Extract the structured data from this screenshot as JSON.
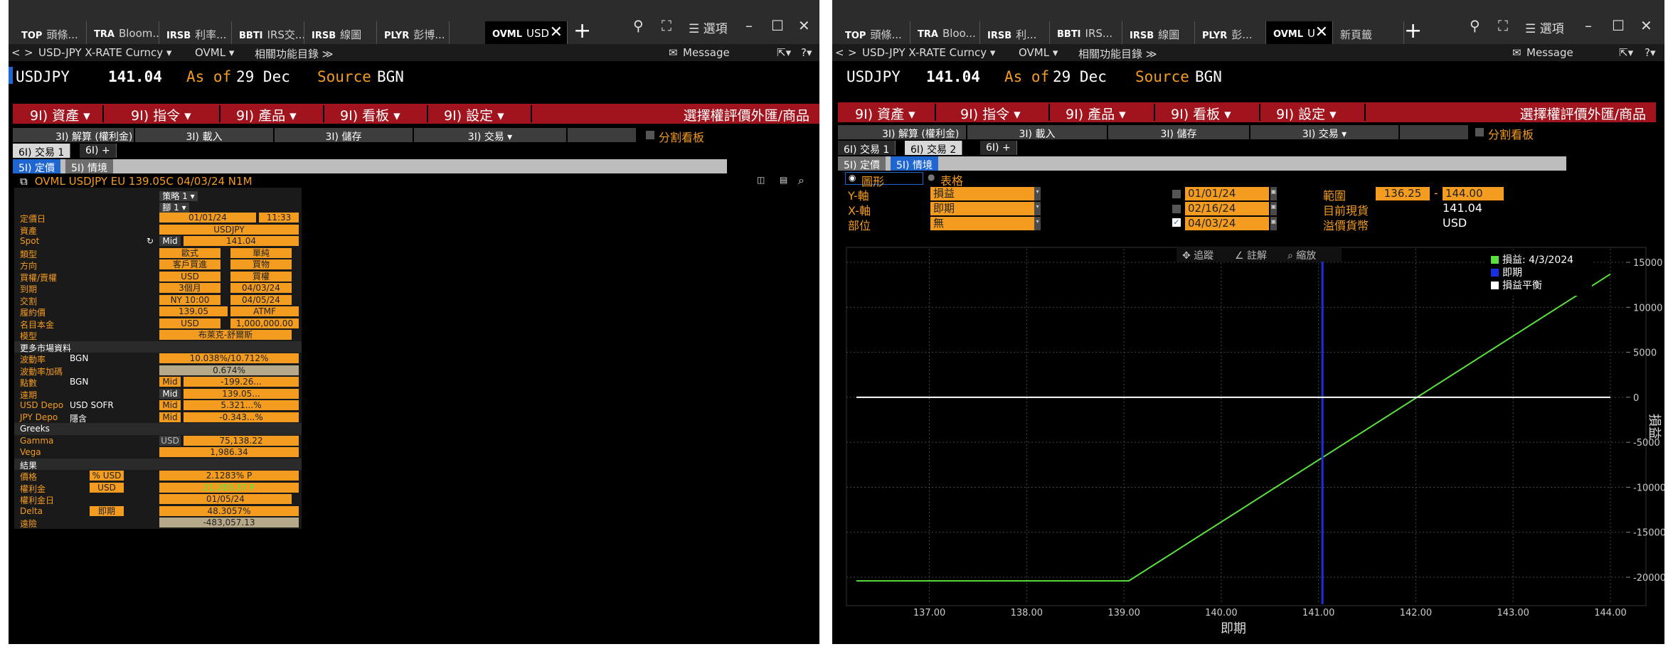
{
  "left_window": {
    "tabs": [
      {
        "prefix": "TOP",
        "label": "頭條..."
      },
      {
        "prefix": "TRA",
        "label": "Bloom..."
      },
      {
        "prefix": "IRSB",
        "label": "利率..."
      },
      {
        "prefix": "BBTI",
        "label": "IRS交..."
      },
      {
        "prefix": "IRSB",
        "label": "線圖"
      },
      {
        "prefix": "PLYR",
        "label": "彭博..."
      },
      {
        "prefix": "OVML",
        "label": "USD"
      }
    ],
    "options_label": "☰ 選項",
    "menu": {
      "security": "USD-JPY X-RATE Curncy ▾",
      "function": "OVML ▾",
      "related": "相關功能目錄 ≫",
      "message": "Message"
    },
    "quote": {
      "ticker": "USDJPY",
      "price": "141.04",
      "asof_label": "As of",
      "asof_date": "29 Dec",
      "source_label": "Source",
      "source": "BGN"
    },
    "red_menu": [
      "9I) 資產 ▾",
      "9I) 指令 ▾",
      "9I) 產品 ▾",
      "9I) 看板 ▾",
      "9I) 設定 ▾"
    ],
    "red_menu_right": "選擇權評價外匯/商品",
    "action_bar": [
      "3I) 解算 (權利金) ▾",
      "3I) 載入",
      "3I) 儲存",
      "3I) 交易 ▾"
    ],
    "split_label": "分割看板",
    "deal_tabs": [
      "6I) 交易 1",
      "6I) +"
    ],
    "view_tabs": [
      "5I) 定價",
      "5I) 情境"
    ],
    "deal_header": "OVML USDJPY EU 139.05C 04/03/24 N1M",
    "strategy_label": "策略 1 ▾",
    "leg_label": "腳 1 ▾",
    "rows": [
      {
        "label": "定價日",
        "value": "01/01/24",
        "value2": "11:33"
      },
      {
        "label": "資產",
        "value": "USDJPY"
      },
      {
        "label": "Spot",
        "src": "Mid",
        "value": "141.04"
      },
      {
        "label": "類型",
        "value": "歐式",
        "value2": "單純"
      },
      {
        "label": "方向",
        "value": "客戶買進",
        "value2": "買物"
      },
      {
        "label": "買權/賣權",
        "value": "USD",
        "value2": "買權"
      },
      {
        "label": "到期",
        "value": "3個月",
        "value2": "04/03/24"
      },
      {
        "label": "交割",
        "value": "NY 10:00",
        "value2": "04/05/24"
      },
      {
        "label": "履約價",
        "value": "139.05",
        "value2": "ATMF"
      },
      {
        "label": "名目本金",
        "value": "USD",
        "value2": "1,000,000.00"
      },
      {
        "label": "模型",
        "value": "布萊克-舒爾斯"
      },
      {
        "label": "更多市場資料",
        "section": true
      },
      {
        "label": "波動率",
        "src": "BGN",
        "value": "10.038%/10.712%"
      },
      {
        "label": "波動率加碼",
        "value": "0.674%"
      },
      {
        "label": "點數",
        "src": "BGN",
        "value": "Mid",
        "value2": "-199.26..."
      },
      {
        "label": "遠期",
        "value": "Mid",
        "value2": "139.05..."
      },
      {
        "label": "USD Depo",
        "src": "USD SOFR",
        "value": "Mid",
        "value2": "5.321...%"
      },
      {
        "label": "JPY Depo",
        "src": "隱含",
        "value": "Mid",
        "value2": "-0.343...%"
      },
      {
        "label": "Greeks",
        "section": true
      },
      {
        "label": "Gamma",
        "value": "USD",
        "value2": "75,138.22"
      },
      {
        "label": "Vega",
        "value": "1,986.34"
      },
      {
        "label": "結果",
        "section": true
      },
      {
        "label": "價格",
        "value": "% USD",
        "value2": "2.1283% P"
      },
      {
        "label": "權利金",
        "value": "USD",
        "value2": "21,283.37 P"
      },
      {
        "label": "權利金日",
        "value": "01/05/24"
      },
      {
        "label": "Delta",
        "value": "即期",
        "value2": "48.3057%"
      },
      {
        "label": "遠險",
        "value": "-483,057.13"
      }
    ]
  },
  "right_window": {
    "tabs": [
      {
        "prefix": "TOP",
        "label": "頭條..."
      },
      {
        "prefix": "TRA",
        "label": "Bloo..."
      },
      {
        "prefix": "IRSB",
        "label": "利..."
      },
      {
        "prefix": "BBTI",
        "label": "IRS..."
      },
      {
        "prefix": "IRSB",
        "label": "線圖"
      },
      {
        "prefix": "PLYR",
        "label": "彭..."
      },
      {
        "prefix": "OVML",
        "label": "U"
      },
      {
        "prefix": "",
        "label": "新頁籤"
      }
    ],
    "options_label": "☰ 選項",
    "menu": {
      "security": "USD-JPY X-RATE Curncy ▾",
      "function": "OVML ▾",
      "related": "相關功能目錄 ≫",
      "message": "Message"
    },
    "quote": {
      "ticker": "USDJPY",
      "price": "141.04",
      "asof_label": "As of",
      "asof_date": "29 Dec",
      "source_label": "Source",
      "source": "BGN"
    },
    "red_menu": [
      "9I) 資產 ▾",
      "9I) 指令 ▾",
      "9I) 產品 ▾",
      "9I) 看板 ▾",
      "9I) 設定 ▾"
    ],
    "red_menu_right": "選擇權評價外匯/商品",
    "action_bar": [
      "3I) 解算 (權利金) ▾",
      "3I) 載入",
      "3I) 儲存",
      "3I) 交易 ▾"
    ],
    "split_label": "分割看板",
    "deal_tabs": [
      "6I) 交易 1",
      "6I) 交易 2",
      "6I) +"
    ],
    "view_tabs": [
      "5I) 定價",
      "5I) 情境"
    ],
    "radio_graph": "圖形",
    "radio_table": "表格",
    "axis_controls": [
      {
        "label": "Y-軸",
        "value": "損益"
      },
      {
        "label": "X-軸",
        "value": "即期"
      },
      {
        "label": "部位",
        "value": "無"
      }
    ],
    "dates": [
      "01/01/24",
      "02/16/24",
      "04/03/24"
    ],
    "range_label": "範圍",
    "range_from": "136.25",
    "range_to": "144.00",
    "current_spot_label": "目前現貨",
    "current_spot": "141.04",
    "currency_label": "溢價貨幣",
    "currency": "USD",
    "chart_toolbar": [
      "✥ 追蹤",
      "∠ 註解",
      "⌕ 縮放"
    ],
    "accent_color": "#f39c1f",
    "red_color": "#a1141e"
  },
  "chart_data": {
    "type": "line",
    "xlabel": "即期",
    "ylabel": "損益",
    "xlim": [
      136.25,
      144.0
    ],
    "ylim": [
      -23000,
      16500
    ],
    "x_ticks": [
      "137.00",
      "138.00",
      "139.00",
      "140.00",
      "141.00",
      "142.00",
      "143.00",
      "144.00"
    ],
    "y_ticks": [
      "15000",
      "10000",
      "5000",
      "0",
      "-5000",
      "-10000",
      "-15000",
      "-20000"
    ],
    "series": [
      {
        "name": "損益: 4/3/2024",
        "color": "#5ae03e",
        "x": [
          136.25,
          139.05,
          144.0
        ],
        "y": [
          -20400,
          -20400,
          13690
        ]
      },
      {
        "name": "即期",
        "color": "#1c2fe0",
        "vertical_x": 141.04
      },
      {
        "name": "損益平衡",
        "color": "#ffffff",
        "x": [
          136.25,
          144.0
        ],
        "y": [
          0,
          0
        ]
      }
    ],
    "grid": true,
    "legend": "top-right"
  }
}
